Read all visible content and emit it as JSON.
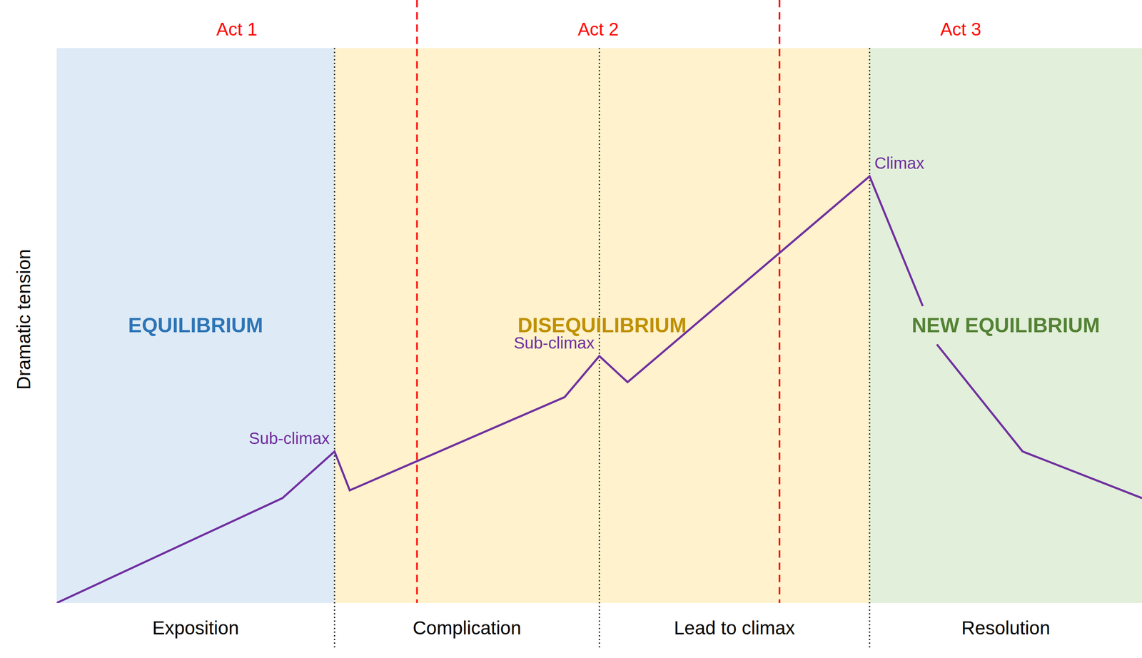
{
  "chart_data": {
    "type": "line",
    "y_label": "Dramatic tension",
    "tick_labels": false,
    "xlim": [
      0,
      100
    ],
    "ylim": [
      0,
      100
    ],
    "x": [
      0,
      20.8,
      25.6,
      27.0,
      46.8,
      50.0,
      52.6,
      74.9,
      79.8,
      80.5,
      81.1,
      89.0,
      100
    ],
    "series": [
      {
        "color": "#7030a0",
        "values": [
          0,
          18.9,
          27.3,
          20.3,
          37.1,
          44.5,
          39.8,
          76.9,
          53.5,
          null,
          46.6,
          27.3,
          18.9
        ]
      }
    ],
    "annotations": [
      {
        "text": "Sub-climax",
        "x": 25.6,
        "y": 27.3
      },
      {
        "text": "Sub-climax",
        "x": 50.0,
        "y": 44.5
      },
      {
        "text": "Climax",
        "x": 74.9,
        "y": 76.9
      }
    ],
    "regions": [
      {
        "label": "EQUILIBRIUM",
        "from": 0,
        "to": 25.6,
        "color": "#deebf7",
        "label_color": "#2e75b6"
      },
      {
        "label": "DISEQUILIBRIUM",
        "from": 25.6,
        "to": 74.9,
        "color": "#fff2cc",
        "label_color": "#bf9000"
      },
      {
        "label": "NEW EQUILIBRIUM",
        "from": 74.9,
        "to": 100,
        "color": "#e2efda",
        "label_color": "#548235"
      }
    ],
    "phases": [
      {
        "label": "Exposition",
        "from": 0,
        "to": 25.6
      },
      {
        "label": "Complication",
        "from": 25.6,
        "to": 50.0
      },
      {
        "label": "Lead to climax",
        "from": 50.0,
        "to": 74.9
      },
      {
        "label": "Resolution",
        "from": 74.9,
        "to": 100
      }
    ],
    "acts": [
      {
        "label": "Act 1",
        "from": 0,
        "to": 33.2,
        "color": "#ff0000"
      },
      {
        "label": "Act 2",
        "from": 33.2,
        "to": 66.6,
        "color": "#ff0000"
      },
      {
        "label": "Act 3",
        "from": 66.6,
        "to": 100,
        "color": "#ff0000"
      }
    ]
  }
}
